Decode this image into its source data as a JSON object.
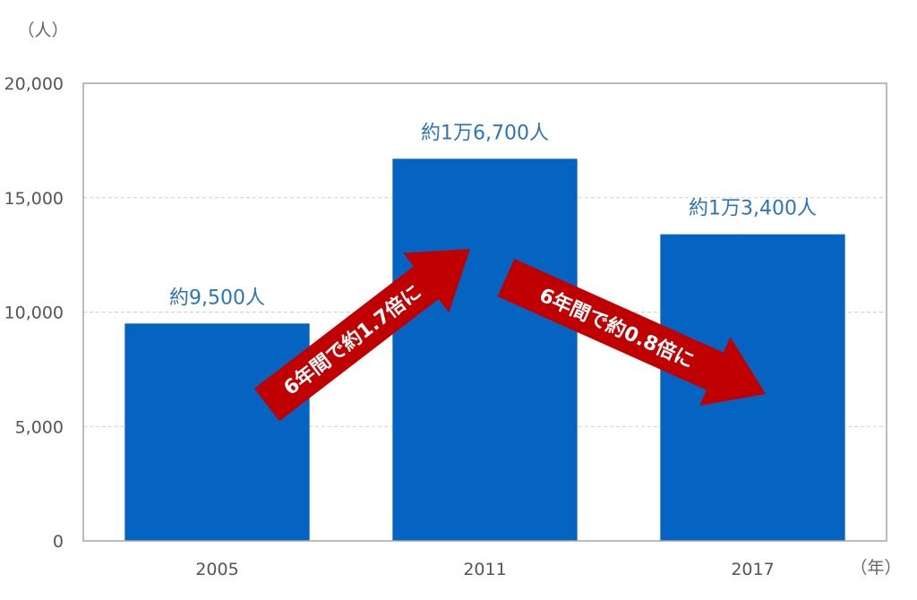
{
  "chart_data": {
    "type": "bar",
    "categories": [
      "2005",
      "2011",
      "2017"
    ],
    "values": [
      9500,
      16700,
      13400
    ],
    "data_labels": [
      "約9,500人",
      "約1万6,700人",
      "約1万3,400人"
    ],
    "y_unit": "（人）",
    "x_unit": "（年）",
    "ylim": [
      0,
      20000
    ],
    "yticks": [
      0,
      5000,
      10000,
      15000,
      20000
    ],
    "ytick_labels": [
      "0",
      "5,000",
      "10,000",
      "15,000",
      "20,000"
    ],
    "grid": true,
    "colors": {
      "bar": "#0563c1",
      "label": "#2e75b6",
      "arrow": "#c00000"
    },
    "annotations": [
      {
        "text": "6年間で約1.7倍に",
        "from": "2005",
        "to": "2011",
        "direction": "up"
      },
      {
        "text": "6年間で約0.8倍に",
        "from": "2011",
        "to": "2017",
        "direction": "down"
      }
    ]
  }
}
